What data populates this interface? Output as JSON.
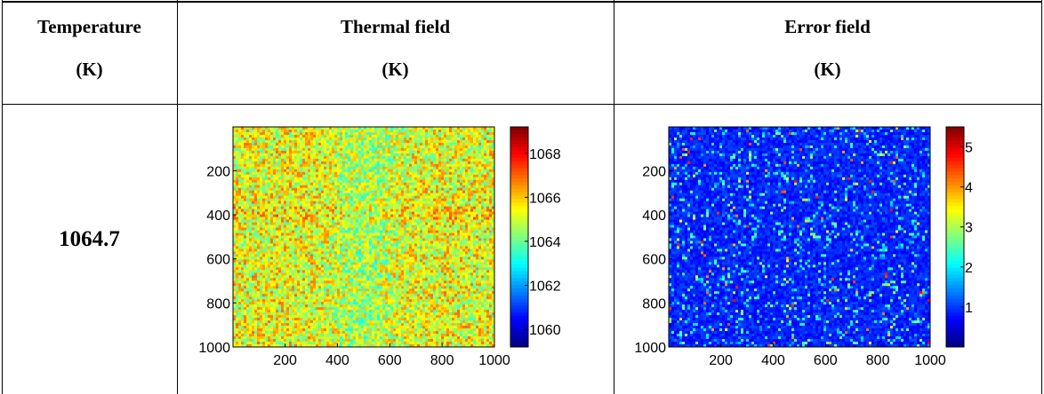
{
  "table": {
    "headers": [
      {
        "line1": "Temperature",
        "line2": "(K)"
      },
      {
        "line1": "Thermal field",
        "line2": "(K)"
      },
      {
        "line1": "Error field",
        "line2": "(K)"
      }
    ],
    "rows": [
      {
        "temperature": "1064.7"
      }
    ]
  },
  "chart_data": [
    {
      "type": "heatmap",
      "title": "",
      "x_ticks": [
        "200",
        "400",
        "600",
        "800",
        "1000"
      ],
      "y_ticks": [
        "200",
        "400",
        "600",
        "800",
        "1000"
      ],
      "xlim": [
        1,
        1000
      ],
      "ylim": [
        1,
        1000
      ],
      "colorbar": {
        "range": [
          1059.2,
          1069.2
        ],
        "ticks": [
          "1068",
          "1066",
          "1064",
          "1062",
          "1060"
        ]
      },
      "mean_value": 1064.7,
      "colormap": "jet"
    },
    {
      "type": "heatmap",
      "title": "",
      "x_ticks": [
        "200",
        "400",
        "600",
        "800",
        "1000"
      ],
      "y_ticks": [
        "200",
        "400",
        "600",
        "800",
        "1000"
      ],
      "xlim": [
        1,
        1000
      ],
      "ylim": [
        1,
        1000
      ],
      "colorbar": {
        "range": [
          0,
          5.5
        ],
        "ticks": [
          "5",
          "4",
          "3",
          "2",
          "1"
        ]
      },
      "mean_value": 0.8,
      "colormap": "jet"
    }
  ]
}
